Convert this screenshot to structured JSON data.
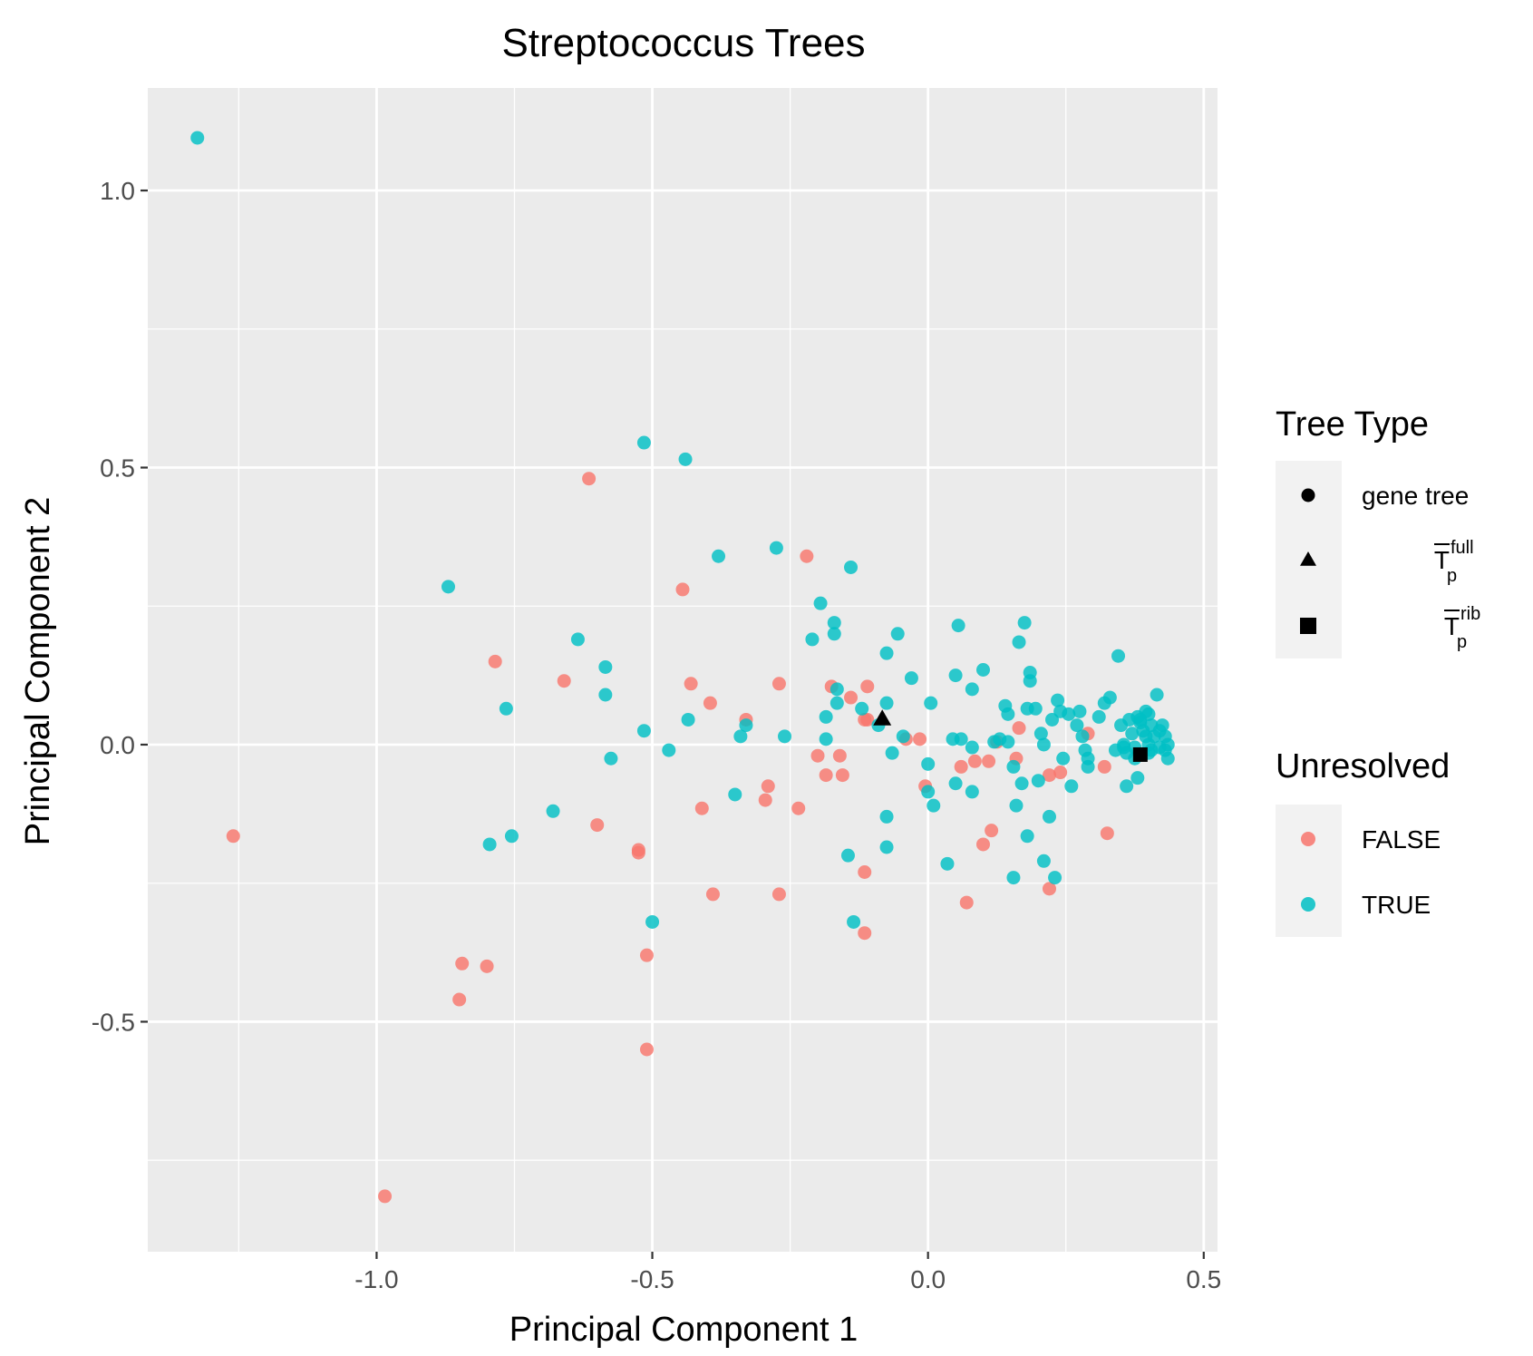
{
  "chart_data": {
    "type": "scatter",
    "title": "Streptococcus Trees",
    "xlabel": "Principal Component 1",
    "ylabel": "Principal Component 2",
    "xlim": [
      -1.415,
      0.525
    ],
    "ylim": [
      -0.915,
      1.185
    ],
    "x_ticks": [
      -1.0,
      -0.5,
      0.0,
      0.5
    ],
    "x_tick_labels": [
      "-1.0",
      "-0.5",
      "0.0",
      "0.5"
    ],
    "y_ticks": [
      -0.5,
      0.0,
      0.5,
      1.0
    ],
    "y_tick_labels": [
      "-0.5",
      "0.0",
      "0.5",
      "1.0"
    ],
    "grid": true,
    "panel_background": "#ebebeb",
    "legend_position": "right",
    "legends": [
      {
        "title": "Tree Type",
        "entries": [
          {
            "label": "gene tree",
            "shape": "circle"
          },
          {
            "label": "T",
            "shape": "triangle",
            "superscript": "full",
            "subscript": "p",
            "overline": true
          },
          {
            "label": "T",
            "shape": "square",
            "superscript": "rib",
            "subscript": "p",
            "overline": true
          }
        ]
      },
      {
        "title": "Unresolved",
        "entries": [
          {
            "label": "FALSE",
            "color": "#f8766d"
          },
          {
            "label": "TRUE",
            "color": "#00bfc4"
          }
        ]
      }
    ],
    "series": [
      {
        "name": "FALSE",
        "color": "#f8766d",
        "shape": "circle",
        "points": [
          [
            -1.26,
            -0.165
          ],
          [
            -0.985,
            -0.815
          ],
          [
            -0.845,
            -0.395
          ],
          [
            -0.85,
            -0.46
          ],
          [
            -0.8,
            -0.4
          ],
          [
            -0.785,
            0.15
          ],
          [
            -0.615,
            0.48
          ],
          [
            -0.66,
            0.115
          ],
          [
            -0.6,
            -0.145
          ],
          [
            -0.525,
            -0.19
          ],
          [
            -0.525,
            -0.195
          ],
          [
            -0.51,
            -0.38
          ],
          [
            -0.51,
            -0.55
          ],
          [
            -0.445,
            0.28
          ],
          [
            -0.43,
            0.11
          ],
          [
            -0.395,
            0.075
          ],
          [
            -0.41,
            -0.115
          ],
          [
            -0.39,
            -0.27
          ],
          [
            -0.33,
            0.045
          ],
          [
            -0.29,
            -0.075
          ],
          [
            -0.295,
            -0.1
          ],
          [
            -0.27,
            0.11
          ],
          [
            -0.27,
            -0.27
          ],
          [
            -0.235,
            -0.115
          ],
          [
            -0.22,
            0.34
          ],
          [
            -0.2,
            -0.02
          ],
          [
            -0.185,
            -0.055
          ],
          [
            -0.175,
            0.105
          ],
          [
            -0.16,
            -0.02
          ],
          [
            -0.155,
            -0.055
          ],
          [
            -0.14,
            0.085
          ],
          [
            -0.11,
            0.105
          ],
          [
            -0.115,
            0.045
          ],
          [
            -0.11,
            0.045
          ],
          [
            -0.115,
            -0.23
          ],
          [
            -0.115,
            -0.34
          ],
          [
            -0.04,
            0.01
          ],
          [
            -0.015,
            0.01
          ],
          [
            -0.005,
            -0.075
          ],
          [
            0.06,
            -0.04
          ],
          [
            0.07,
            -0.285
          ],
          [
            0.085,
            -0.03
          ],
          [
            0.1,
            -0.18
          ],
          [
            0.11,
            -0.03
          ],
          [
            0.115,
            -0.155
          ],
          [
            0.125,
            0.005
          ],
          [
            0.16,
            -0.025
          ],
          [
            0.165,
            0.03
          ],
          [
            0.22,
            -0.055
          ],
          [
            0.22,
            -0.26
          ],
          [
            0.24,
            -0.05
          ],
          [
            0.29,
            0.02
          ],
          [
            0.32,
            -0.04
          ],
          [
            0.325,
            -0.16
          ]
        ]
      },
      {
        "name": "TRUE",
        "color": "#00bfc4",
        "shape": "circle",
        "points": [
          [
            -1.325,
            1.095
          ],
          [
            -0.87,
            0.285
          ],
          [
            -0.765,
            0.065
          ],
          [
            -0.795,
            -0.18
          ],
          [
            -0.755,
            -0.165
          ],
          [
            -0.68,
            -0.12
          ],
          [
            -0.635,
            0.19
          ],
          [
            -0.585,
            0.14
          ],
          [
            -0.585,
            0.09
          ],
          [
            -0.575,
            -0.025
          ],
          [
            -0.515,
            0.545
          ],
          [
            -0.515,
            0.025
          ],
          [
            -0.5,
            -0.32
          ],
          [
            -0.44,
            0.515
          ],
          [
            -0.435,
            0.045
          ],
          [
            -0.47,
            -0.01
          ],
          [
            -0.38,
            0.34
          ],
          [
            -0.35,
            -0.09
          ],
          [
            -0.33,
            0.035
          ],
          [
            -0.275,
            0.355
          ],
          [
            -0.26,
            0.015
          ],
          [
            -0.21,
            0.19
          ],
          [
            -0.195,
            0.255
          ],
          [
            -0.185,
            0.05
          ],
          [
            -0.185,
            0.01
          ],
          [
            -0.17,
            0.22
          ],
          [
            -0.17,
            0.2
          ],
          [
            -0.165,
            0.1
          ],
          [
            -0.165,
            0.075
          ],
          [
            -0.145,
            -0.2
          ],
          [
            -0.14,
            0.32
          ],
          [
            -0.135,
            -0.32
          ],
          [
            -0.12,
            0.065
          ],
          [
            -0.075,
            0.165
          ],
          [
            -0.075,
            0.075
          ],
          [
            -0.075,
            -0.13
          ],
          [
            -0.075,
            -0.185
          ],
          [
            -0.065,
            -0.015
          ],
          [
            -0.055,
            0.2
          ],
          [
            -0.045,
            0.015
          ],
          [
            -0.03,
            0.12
          ],
          [
            0.0,
            -0.035
          ],
          [
            0.0,
            -0.085
          ],
          [
            0.005,
            0.075
          ],
          [
            0.01,
            -0.11
          ],
          [
            0.035,
            -0.215
          ],
          [
            0.045,
            0.01
          ],
          [
            0.05,
            0.125
          ],
          [
            0.05,
            -0.07
          ],
          [
            0.055,
            0.215
          ],
          [
            0.06,
            0.01
          ],
          [
            0.08,
            0.1
          ],
          [
            0.08,
            -0.005
          ],
          [
            0.08,
            -0.085
          ],
          [
            0.1,
            0.135
          ],
          [
            0.12,
            0.005
          ],
          [
            0.13,
            0.01
          ],
          [
            0.14,
            0.07
          ],
          [
            0.145,
            0.055
          ],
          [
            0.145,
            0.005
          ],
          [
            0.155,
            -0.04
          ],
          [
            0.155,
            -0.24
          ],
          [
            0.16,
            -0.11
          ],
          [
            0.165,
            0.185
          ],
          [
            0.17,
            -0.07
          ],
          [
            0.175,
            0.22
          ],
          [
            0.18,
            0.065
          ],
          [
            0.18,
            -0.165
          ],
          [
            0.185,
            0.115
          ],
          [
            0.185,
            0.13
          ],
          [
            0.195,
            0.065
          ],
          [
            0.2,
            -0.065
          ],
          [
            0.205,
            0.02
          ],
          [
            0.21,
            0.0
          ],
          [
            0.21,
            -0.21
          ],
          [
            0.22,
            -0.13
          ],
          [
            0.225,
            0.045
          ],
          [
            0.23,
            -0.24
          ],
          [
            0.235,
            0.08
          ],
          [
            0.24,
            0.06
          ],
          [
            0.245,
            -0.025
          ],
          [
            0.255,
            0.055
          ],
          [
            0.26,
            -0.075
          ],
          [
            0.27,
            0.035
          ],
          [
            0.275,
            0.06
          ],
          [
            0.28,
            0.015
          ],
          [
            0.285,
            -0.01
          ],
          [
            0.29,
            -0.025
          ],
          [
            0.29,
            -0.04
          ],
          [
            0.31,
            0.05
          ],
          [
            0.32,
            0.075
          ],
          [
            0.33,
            0.085
          ],
          [
            0.34,
            -0.01
          ],
          [
            0.345,
            0.16
          ],
          [
            0.35,
            0.035
          ],
          [
            0.355,
            0.0
          ],
          [
            0.36,
            -0.075
          ],
          [
            0.365,
            0.045
          ],
          [
            0.37,
            0.02
          ],
          [
            0.375,
            -0.005
          ],
          [
            0.375,
            -0.025
          ],
          [
            0.38,
            0.05
          ],
          [
            0.38,
            -0.06
          ],
          [
            0.385,
            0.04
          ],
          [
            0.39,
            0.025
          ],
          [
            0.395,
            0.015
          ],
          [
            0.395,
            0.06
          ],
          [
            0.4,
            0.0
          ],
          [
            0.4,
            0.055
          ],
          [
            0.405,
            -0.01
          ],
          [
            0.405,
            0.035
          ],
          [
            0.41,
            0.015
          ],
          [
            0.415,
            0.09
          ],
          [
            0.42,
            0.025
          ],
          [
            0.42,
            -0.005
          ],
          [
            0.425,
            0.035
          ],
          [
            0.43,
            0.015
          ],
          [
            0.43,
            -0.01
          ],
          [
            0.435,
            0.0
          ],
          [
            0.435,
            -0.025
          ],
          [
            0.355,
            -0.005
          ],
          [
            0.385,
            0.045
          ],
          [
            0.4,
            -0.015
          ],
          [
            -0.34,
            0.015
          ],
          [
            0.36,
            -0.015
          ],
          [
            -0.09,
            0.035
          ]
        ]
      },
      {
        "name": "T full",
        "color": "#000000",
        "shape": "triangle",
        "points": [
          [
            -0.083,
            0.047
          ]
        ]
      },
      {
        "name": "T rib",
        "color": "#000000",
        "shape": "square",
        "points": [
          [
            0.385,
            -0.018
          ]
        ]
      }
    ]
  }
}
